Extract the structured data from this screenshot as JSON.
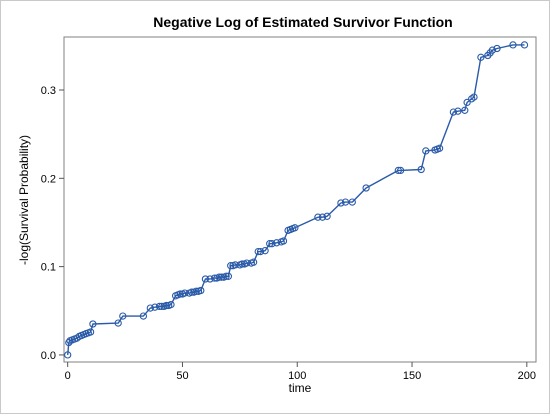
{
  "chart_data": {
    "type": "line",
    "title": "Negative Log of Estimated Survivor Function",
    "xlabel": "time",
    "ylabel": "-log(Survival Probability)",
    "xlim": [
      -1.6,
      204
    ],
    "ylim": [
      -0.008,
      0.36
    ],
    "xticks": [
      0,
      50,
      100,
      150,
      200
    ],
    "yticks": [
      0.0,
      0.1,
      0.2,
      0.3
    ],
    "xtick_labels": [
      "0",
      "50",
      "100",
      "150",
      "200"
    ],
    "ytick_labels": [
      "0.0",
      "0.1",
      "0.2",
      "0.3"
    ],
    "grid": false,
    "line_color": "#2a5aa8",
    "marker_color": "#2a5aa8",
    "series": [
      {
        "x": [
          0,
          0.5,
          1,
          2,
          3,
          4,
          5,
          6,
          7,
          8,
          9,
          10,
          11,
          22,
          24,
          33,
          36,
          38,
          40,
          41,
          42,
          43,
          44,
          45,
          47,
          48,
          49,
          50,
          51,
          53,
          54,
          55,
          56,
          57,
          58,
          60,
          62,
          64,
          65,
          66,
          67,
          68,
          69,
          70,
          71,
          72,
          73,
          75,
          76,
          77,
          78,
          80,
          81,
          83,
          84,
          86,
          88,
          89,
          91,
          93,
          94,
          96,
          97,
          98,
          99,
          109,
          111,
          113,
          119,
          121,
          124,
          130,
          144,
          145,
          154,
          156,
          160,
          161,
          162,
          168,
          170,
          173,
          174,
          176,
          177,
          180,
          183,
          184,
          185,
          187,
          194,
          199
        ],
        "y": [
          0.0,
          0.014,
          0.016,
          0.017,
          0.018,
          0.019,
          0.021,
          0.022,
          0.023,
          0.024,
          0.025,
          0.026,
          0.035,
          0.036,
          0.044,
          0.044,
          0.053,
          0.054,
          0.055,
          0.055,
          0.055,
          0.056,
          0.056,
          0.057,
          0.067,
          0.068,
          0.069,
          0.069,
          0.07,
          0.07,
          0.071,
          0.071,
          0.072,
          0.072,
          0.073,
          0.086,
          0.086,
          0.087,
          0.087,
          0.088,
          0.088,
          0.088,
          0.089,
          0.089,
          0.101,
          0.101,
          0.102,
          0.102,
          0.103,
          0.103,
          0.104,
          0.104,
          0.105,
          0.117,
          0.117,
          0.118,
          0.126,
          0.126,
          0.127,
          0.128,
          0.129,
          0.141,
          0.142,
          0.143,
          0.144,
          0.156,
          0.156,
          0.157,
          0.172,
          0.173,
          0.173,
          0.189,
          0.209,
          0.209,
          0.21,
          0.231,
          0.232,
          0.233,
          0.234,
          0.275,
          0.276,
          0.277,
          0.286,
          0.29,
          0.292,
          0.337,
          0.339,
          0.342,
          0.345,
          0.347,
          0.351,
          0.351
        ]
      }
    ]
  }
}
